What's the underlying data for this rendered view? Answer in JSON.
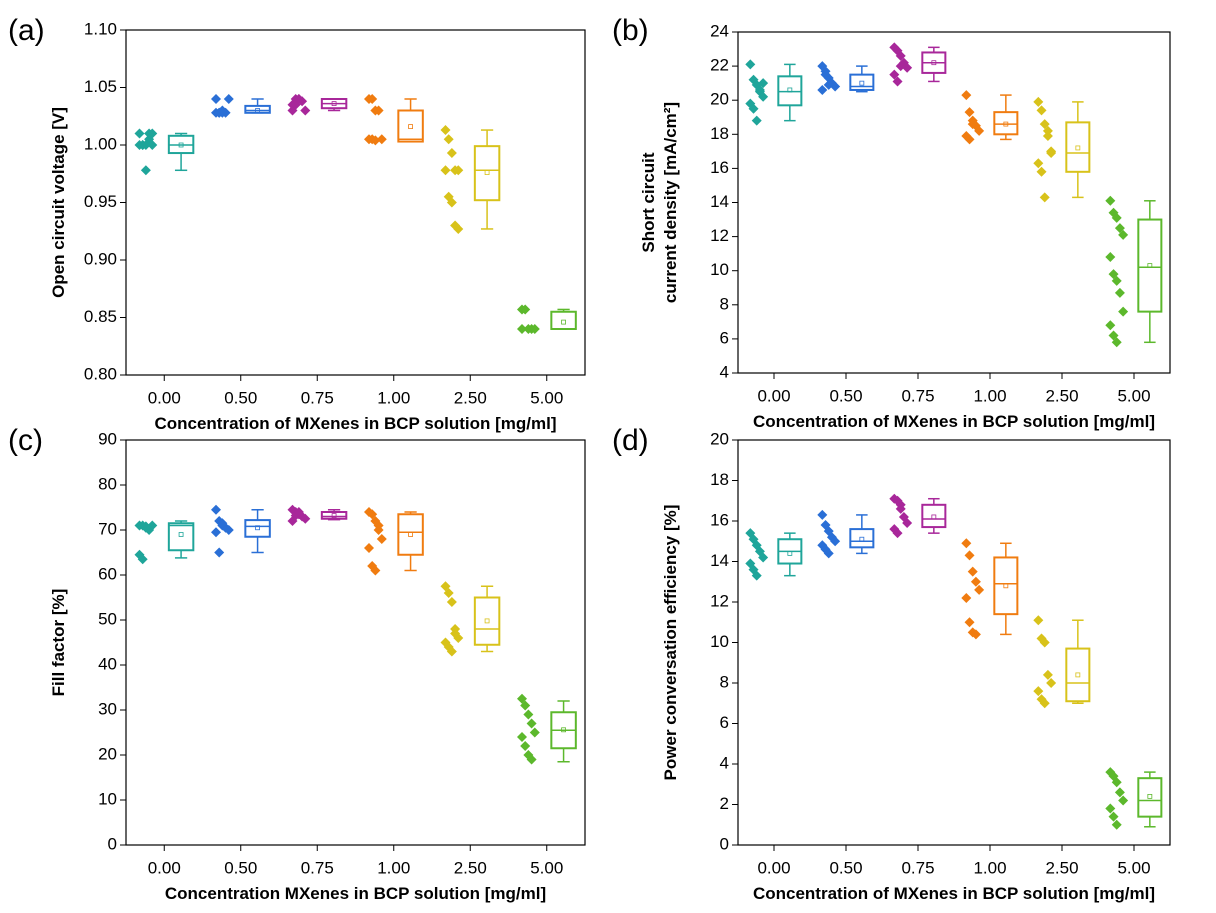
{
  "chart_data": [
    {
      "type": "box",
      "panel_label": "(a)",
      "ylabel": [
        "Open circuit voltage [V]"
      ],
      "xlabel": "Concentration of MXenes in BCP solution [mg/ml]",
      "categories": [
        "0.00",
        "0.50",
        "0.75",
        "1.00",
        "2.50",
        "5.00"
      ],
      "ylim": [
        0.8,
        1.1
      ],
      "yticks": [
        {
          "value": 0.8,
          "label": "0.80"
        },
        {
          "value": 0.85,
          "label": "0.85"
        },
        {
          "value": 0.9,
          "label": "0.90"
        },
        {
          "value": 0.95,
          "label": "0.95"
        },
        {
          "value": 1.0,
          "label": "1.00"
        },
        {
          "value": 1.05,
          "label": "1.05"
        },
        {
          "value": 1.1,
          "label": "1.10"
        }
      ],
      "colors": [
        "#1fa59a",
        "#2a6fd6",
        "#a8279a",
        "#f07c10",
        "#d8c21a",
        "#5cb82c"
      ],
      "points": [
        [
          1.0,
          1.0,
          1.0,
          1.01,
          1.01,
          1.01,
          1.0,
          0.978,
          1.005,
          1.0
        ],
        [
          1.028,
          1.028,
          1.028,
          1.028,
          1.04,
          1.04,
          1.028,
          1.03
        ],
        [
          1.035,
          1.04,
          1.04,
          1.038,
          1.03,
          1.03,
          1.035,
          1.04
        ],
        [
          1.04,
          1.04,
          1.03,
          1.03,
          1.005,
          1.005,
          1.005,
          1.004
        ],
        [
          1.013,
          1.005,
          0.993,
          0.978,
          0.978,
          0.978,
          0.955,
          0.95,
          0.93,
          0.927
        ],
        [
          0.857,
          0.857,
          0.84,
          0.84,
          0.84,
          0.84
        ]
      ],
      "boxes": [
        {
          "min": 0.978,
          "q1": 0.993,
          "median": 1.0,
          "q3": 1.008,
          "max": 1.01,
          "mean": 1.0
        },
        {
          "min": 1.028,
          "q1": 1.028,
          "median": 1.03,
          "q3": 1.034,
          "max": 1.04,
          "mean": 1.03
        },
        {
          "min": 1.03,
          "q1": 1.032,
          "median": 1.036,
          "q3": 1.04,
          "max": 1.04,
          "mean": 1.036
        },
        {
          "min": 1.003,
          "q1": 1.003,
          "median": 1.005,
          "q3": 1.03,
          "max": 1.04,
          "mean": 1.016
        },
        {
          "min": 0.927,
          "q1": 0.952,
          "median": 0.978,
          "q3": 0.999,
          "max": 1.013,
          "mean": 0.976
        },
        {
          "min": 0.84,
          "q1": 0.84,
          "median": 0.84,
          "q3": 0.855,
          "max": 0.857,
          "mean": 0.846
        }
      ]
    },
    {
      "type": "box",
      "panel_label": "(b)",
      "ylabel": [
        "Short circuit",
        "current density [mA/cm²]"
      ],
      "xlabel": "Concentration of MXenes in BCP solution [mg/ml]",
      "categories": [
        "0.00",
        "0.50",
        "0.75",
        "1.00",
        "2.50",
        "5.00"
      ],
      "ylim": [
        4,
        24
      ],
      "yticks": [
        4,
        6,
        8,
        10,
        12,
        14,
        16,
        18,
        20,
        22,
        24
      ],
      "colors": [
        "#1fa59a",
        "#2a6fd6",
        "#a8279a",
        "#f07c10",
        "#d8c21a",
        "#5cb82c"
      ],
      "points": [
        [
          22.1,
          21.2,
          20.9,
          20.5,
          20.2,
          19.8,
          19.5,
          18.8,
          20.6,
          21.0
        ],
        [
          22.0,
          21.7,
          21.3,
          21.0,
          20.8,
          20.6,
          21.5,
          20.9
        ],
        [
          23.1,
          22.9,
          22.6,
          22.2,
          21.9,
          21.5,
          21.1,
          22.0
        ],
        [
          20.3,
          19.3,
          18.8,
          18.5,
          18.2,
          17.9,
          17.7,
          18.6
        ],
        [
          19.9,
          19.4,
          18.6,
          17.9,
          16.9,
          16.3,
          15.8,
          14.3,
          18.2,
          17.0
        ],
        [
          14.1,
          13.4,
          13.1,
          12.5,
          12.1,
          10.8,
          9.8,
          9.4,
          8.7,
          7.6,
          6.8,
          6.2,
          5.8
        ]
      ],
      "boxes": [
        {
          "min": 18.8,
          "q1": 19.7,
          "median": 20.5,
          "q3": 21.4,
          "max": 22.1,
          "mean": 20.6
        },
        {
          "min": 20.5,
          "q1": 20.6,
          "median": 20.8,
          "q3": 21.5,
          "max": 22.0,
          "mean": 21.0
        },
        {
          "min": 21.1,
          "q1": 21.6,
          "median": 22.2,
          "q3": 22.8,
          "max": 23.1,
          "mean": 22.2
        },
        {
          "min": 17.7,
          "q1": 18.0,
          "median": 18.6,
          "q3": 19.3,
          "max": 20.3,
          "mean": 18.6
        },
        {
          "min": 14.3,
          "q1": 15.8,
          "median": 16.9,
          "q3": 18.7,
          "max": 19.9,
          "mean": 17.2
        },
        {
          "min": 5.8,
          "q1": 7.6,
          "median": 10.2,
          "q3": 13.0,
          "max": 14.1,
          "mean": 10.3
        }
      ]
    },
    {
      "type": "box",
      "panel_label": "(c)",
      "ylabel": [
        "Fill factor [%]"
      ],
      "xlabel": "Concentration MXenes in BCP solution [mg/ml]",
      "categories": [
        "0.00",
        "0.50",
        "0.75",
        "1.00",
        "2.50",
        "5.00"
      ],
      "ylim": [
        0,
        90
      ],
      "yticks": [
        0,
        10,
        20,
        30,
        40,
        50,
        60,
        70,
        80,
        90
      ],
      "colors": [
        "#1fa59a",
        "#2a6fd6",
        "#a8279a",
        "#f07c10",
        "#d8c21a",
        "#5cb82c"
      ],
      "points": [
        [
          71,
          71,
          70.5,
          70,
          71,
          64.5,
          63.5,
          70.8
        ],
        [
          74.5,
          72,
          71,
          70.5,
          70,
          69.5,
          65,
          71.5
        ],
        [
          74.5,
          74,
          73.5,
          73,
          72.5,
          72,
          73.2,
          74
        ],
        [
          74,
          73.5,
          72,
          70,
          68,
          66,
          62,
          61,
          71
        ],
        [
          57.5,
          56,
          54,
          48,
          46,
          45,
          44,
          43,
          47
        ],
        [
          32.5,
          31,
          29,
          27,
          25,
          24,
          22,
          20,
          19
        ]
      ],
      "boxes": [
        {
          "min": 63.8,
          "q1": 65.5,
          "median": 71,
          "q3": 71.5,
          "max": 72,
          "mean": 69
        },
        {
          "min": 65,
          "q1": 68.5,
          "median": 70.8,
          "q3": 72.2,
          "max": 74.5,
          "mean": 70.5
        },
        {
          "min": 72.3,
          "q1": 72.5,
          "median": 73,
          "q3": 74,
          "max": 74.5,
          "mean": 73.2
        },
        {
          "min": 61,
          "q1": 64.5,
          "median": 69.5,
          "q3": 73.5,
          "max": 74,
          "mean": 69
        },
        {
          "min": 43,
          "q1": 44.5,
          "median": 48,
          "q3": 55,
          "max": 57.5,
          "mean": 49.8
        },
        {
          "min": 18.5,
          "q1": 21.5,
          "median": 25.5,
          "q3": 29.5,
          "max": 32,
          "mean": 25.6
        }
      ]
    },
    {
      "type": "box",
      "panel_label": "(d)",
      "ylabel": [
        "Power conversation efficiency [%]"
      ],
      "xlabel": "Concentration of MXenes in BCP solution [mg/ml]",
      "categories": [
        "0.00",
        "0.50",
        "0.75",
        "1.00",
        "2.50",
        "5.00"
      ],
      "ylim": [
        0,
        20
      ],
      "yticks": [
        0,
        2,
        4,
        6,
        8,
        10,
        12,
        14,
        16,
        18,
        20
      ],
      "colors": [
        "#1fa59a",
        "#2a6fd6",
        "#a8279a",
        "#f07c10",
        "#d8c21a",
        "#5cb82c"
      ],
      "points": [
        [
          15.4,
          15.1,
          14.8,
          14.5,
          14.2,
          13.9,
          13.6,
          13.3
        ],
        [
          16.3,
          15.8,
          15.5,
          15.2,
          15.0,
          14.8,
          14.6,
          14.4
        ],
        [
          17.1,
          17.0,
          16.6,
          16.2,
          15.9,
          15.6,
          15.4,
          16.8
        ],
        [
          14.9,
          14.3,
          13.5,
          13.0,
          12.6,
          12.2,
          11.0,
          10.5,
          10.4
        ],
        [
          11.1,
          10.2,
          10.0,
          8.4,
          8.0,
          7.6,
          7.2,
          7.0
        ],
        [
          3.6,
          3.4,
          3.1,
          2.6,
          2.2,
          1.8,
          1.4,
          1.0
        ]
      ],
      "boxes": [
        {
          "min": 13.3,
          "q1": 13.9,
          "median": 14.5,
          "q3": 15.1,
          "max": 15.4,
          "mean": 14.4
        },
        {
          "min": 14.4,
          "q1": 14.7,
          "median": 15.0,
          "q3": 15.6,
          "max": 16.3,
          "mean": 15.1
        },
        {
          "min": 15.4,
          "q1": 15.7,
          "median": 16.1,
          "q3": 16.8,
          "max": 17.1,
          "mean": 16.2
        },
        {
          "min": 10.4,
          "q1": 11.4,
          "median": 12.9,
          "q3": 14.2,
          "max": 14.9,
          "mean": 12.8
        },
        {
          "min": 7.0,
          "q1": 7.1,
          "median": 8.0,
          "q3": 9.7,
          "max": 11.1,
          "mean": 8.4
        },
        {
          "min": 0.9,
          "q1": 1.4,
          "median": 2.2,
          "q3": 3.3,
          "max": 3.6,
          "mean": 2.4
        }
      ]
    }
  ]
}
